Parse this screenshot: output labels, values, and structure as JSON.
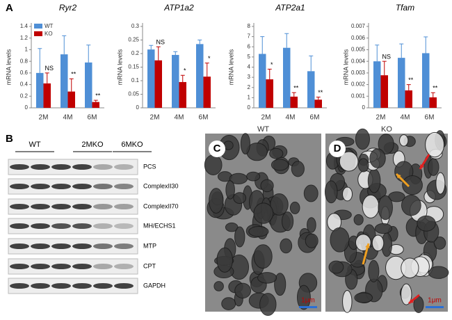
{
  "chart_data": [
    {
      "type": "bar",
      "title": "Ryr2",
      "y_label": "mRNA levels",
      "categories": [
        "2M",
        "4M",
        "6M"
      ],
      "legend": "upper left",
      "series": [
        {
          "name": "WT",
          "color": "#4f8fd6",
          "values": [
            0.6,
            0.92,
            0.78
          ],
          "errors": [
            0.42,
            0.32,
            0.3
          ]
        },
        {
          "name": "KO",
          "color": "#c00000",
          "values": [
            0.42,
            0.28,
            0.1
          ],
          "errors": [
            0.18,
            0.22,
            0.03
          ]
        }
      ],
      "annotations": [
        "NS",
        "**",
        "**"
      ],
      "ylim": [
        0,
        1.4
      ],
      "yticks": [
        0,
        0.2,
        0.4,
        0.6,
        0.8,
        1,
        1.2,
        1.4
      ]
    },
    {
      "type": "bar",
      "title": "ATP1a2",
      "y_label": "mRNA levels",
      "categories": [
        "2M",
        "4M",
        "6M"
      ],
      "series": [
        {
          "color": "#4f8fd6",
          "values": [
            0.215,
            0.195,
            0.235
          ],
          "errors": [
            0.015,
            0.012,
            0.015
          ]
        },
        {
          "color": "#c00000",
          "values": [
            0.175,
            0.095,
            0.115
          ],
          "errors": [
            0.05,
            0.025,
            0.05
          ]
        }
      ],
      "annotations": [
        "NS",
        "*",
        "*"
      ],
      "ylim": [
        0,
        0.3
      ],
      "yticks": [
        0,
        0.05,
        0.1,
        0.15,
        0.2,
        0.25,
        0.3
      ]
    },
    {
      "type": "bar",
      "title": "ATP2a1",
      "y_label": "mRNA levels",
      "categories": [
        "2M",
        "4M",
        "6M"
      ],
      "series": [
        {
          "color": "#4f8fd6",
          "values": [
            5.3,
            5.9,
            3.6
          ],
          "errors": [
            1.7,
            1.4,
            1.5
          ]
        },
        {
          "color": "#c00000",
          "values": [
            2.8,
            1.1,
            0.8
          ],
          "errors": [
            1.0,
            0.4,
            0.25
          ]
        }
      ],
      "annotations": [
        "*",
        "**",
        "**"
      ],
      "ylim": [
        0,
        8
      ],
      "yticks": [
        0,
        1,
        2,
        3,
        4,
        5,
        6,
        7,
        8
      ]
    },
    {
      "type": "bar",
      "title": "Tfam",
      "y_label": "mRNA levels",
      "categories": [
        "2M",
        "4M",
        "6M"
      ],
      "series": [
        {
          "color": "#4f8fd6",
          "values": [
            0.004,
            0.0043,
            0.0047
          ],
          "errors": [
            0.0014,
            0.0012,
            0.0014
          ]
        },
        {
          "color": "#c00000",
          "values": [
            0.0028,
            0.0015,
            0.0009
          ],
          "errors": [
            0.0012,
            0.0005,
            0.0004
          ]
        }
      ],
      "annotations": [
        "NS",
        "**",
        "**"
      ],
      "ylim": [
        0,
        0.007
      ],
      "yticks": [
        0,
        0.001,
        0.002,
        0.003,
        0.004,
        0.005,
        0.006,
        0.007
      ]
    }
  ],
  "panel_labels": [
    "A",
    "B",
    "C",
    "D"
  ],
  "blot": {
    "groups": [
      "WT",
      "2MKO",
      "6MKO"
    ],
    "proteins": [
      "PCS",
      "ComplexII30",
      "ComplexII70",
      "MH/ECHS1",
      "MTP",
      "CPT",
      "GAPDH"
    ]
  },
  "em": {
    "left_label": "WT",
    "right_label": "KO",
    "scale_bar": "1μm"
  }
}
